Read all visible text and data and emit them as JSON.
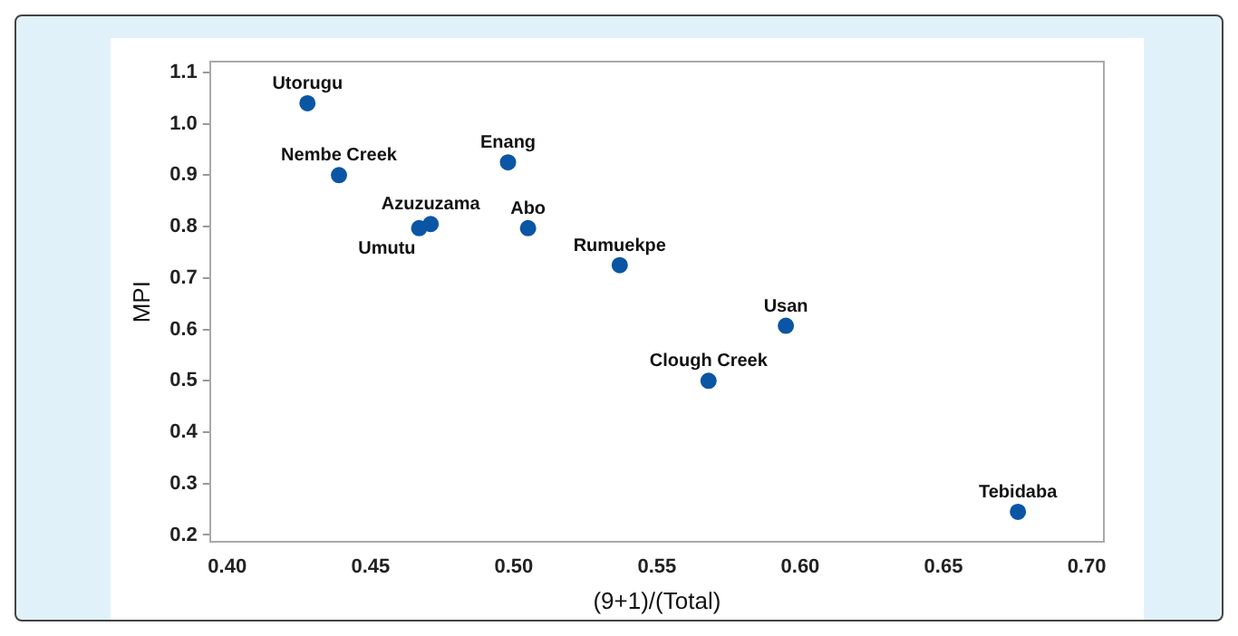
{
  "chart_data": {
    "type": "scatter",
    "xlabel": "(9+1)/(Total)",
    "ylabel": "MPI",
    "x": [
      0.428,
      0.439,
      0.471,
      0.467,
      0.498,
      0.505,
      0.537,
      0.595,
      0.568,
      0.676
    ],
    "values": [
      1.04,
      0.9,
      0.805,
      0.797,
      0.925,
      0.797,
      0.725,
      0.607,
      0.5,
      0.245
    ],
    "color": "#0b56a4",
    "marker": "circle",
    "grid": false,
    "xlim": [
      0.394,
      0.706
    ],
    "xticks": [
      {
        "value": 0.4,
        "label": "0.40"
      },
      {
        "value": 0.45,
        "label": "0.45"
      },
      {
        "value": 0.5,
        "label": "0.50"
      },
      {
        "value": 0.55,
        "label": "0.55"
      },
      {
        "value": 0.6,
        "label": "0.60"
      },
      {
        "value": 0.65,
        "label": "0.65"
      },
      {
        "value": 0.7,
        "label": "0.70"
      }
    ],
    "ylim": [
      0.186,
      1.121
    ],
    "yticks": [
      0.2,
      0.3,
      0.4,
      0.5,
      0.6,
      0.7,
      0.8,
      0.9,
      {
        "value": 1.0,
        "label": "1.0"
      },
      1.1
    ],
    "annotations": [
      {
        "text": "Utorugu",
        "x": 0.428,
        "y": 1.04
      },
      {
        "text": "Nembe Creek",
        "x": 0.439,
        "y": 0.9
      },
      {
        "text": "Azuzuzama",
        "x": 0.471,
        "y": 0.805
      },
      {
        "text": "Umutu",
        "x": 0.467,
        "y": 0.797
      },
      {
        "text": "Enang",
        "x": 0.498,
        "y": 0.925
      },
      {
        "text": "Abo",
        "x": 0.505,
        "y": 0.797
      },
      {
        "text": "Rumuekpe",
        "x": 0.537,
        "y": 0.725
      },
      {
        "text": "Usan",
        "x": 0.595,
        "y": 0.607
      },
      {
        "text": "Clough Creek",
        "x": 0.568,
        "y": 0.5
      },
      {
        "text": "Tebidaba",
        "x": 0.676,
        "y": 0.245
      }
    ]
  }
}
